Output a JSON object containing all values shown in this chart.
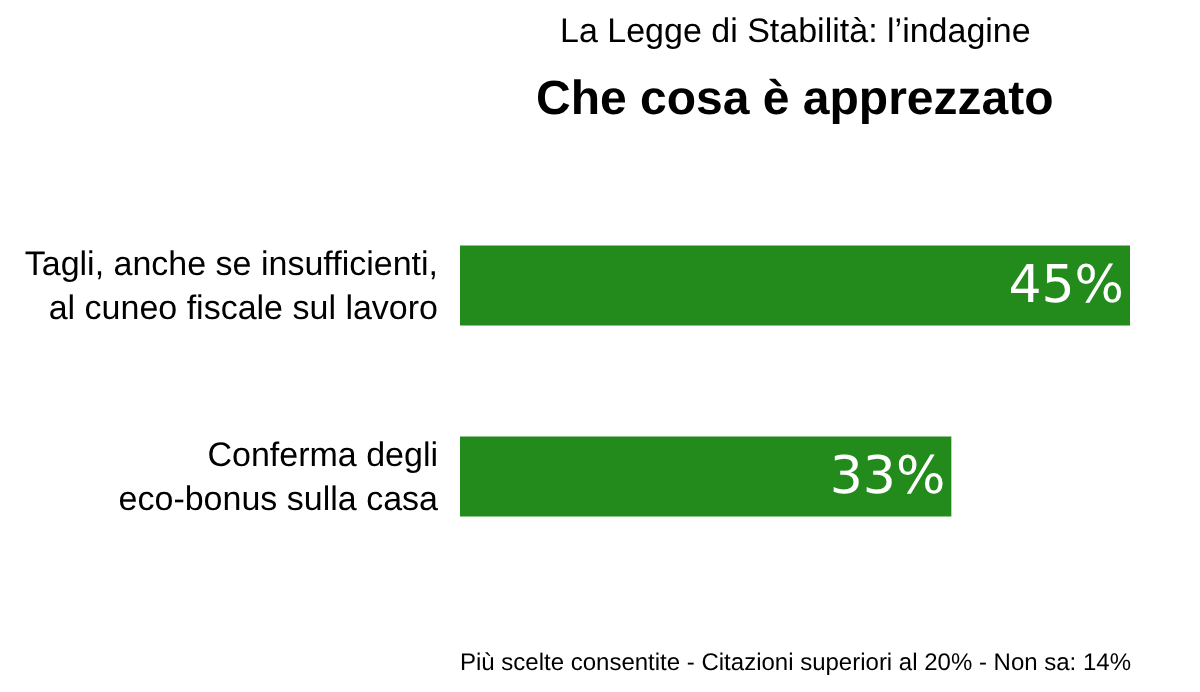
{
  "chart_data": {
    "type": "bar",
    "orientation": "horizontal",
    "title": "La Legge di Stabilità: l’indagine",
    "subtitle": "Che cosa è apprezzato",
    "categories": [
      "Tagli, anche se insufficienti,\nal cuneo fiscale sul lavoro",
      "Conferma degli\neco-bonus sulla casa"
    ],
    "values": [
      45,
      33
    ],
    "value_labels": [
      "45%",
      "33%"
    ],
    "color": "#238a1c",
    "annotations": [
      "Più scelte consentite - Citazioni superiori al 20% - Non sa: 14%"
    ]
  }
}
